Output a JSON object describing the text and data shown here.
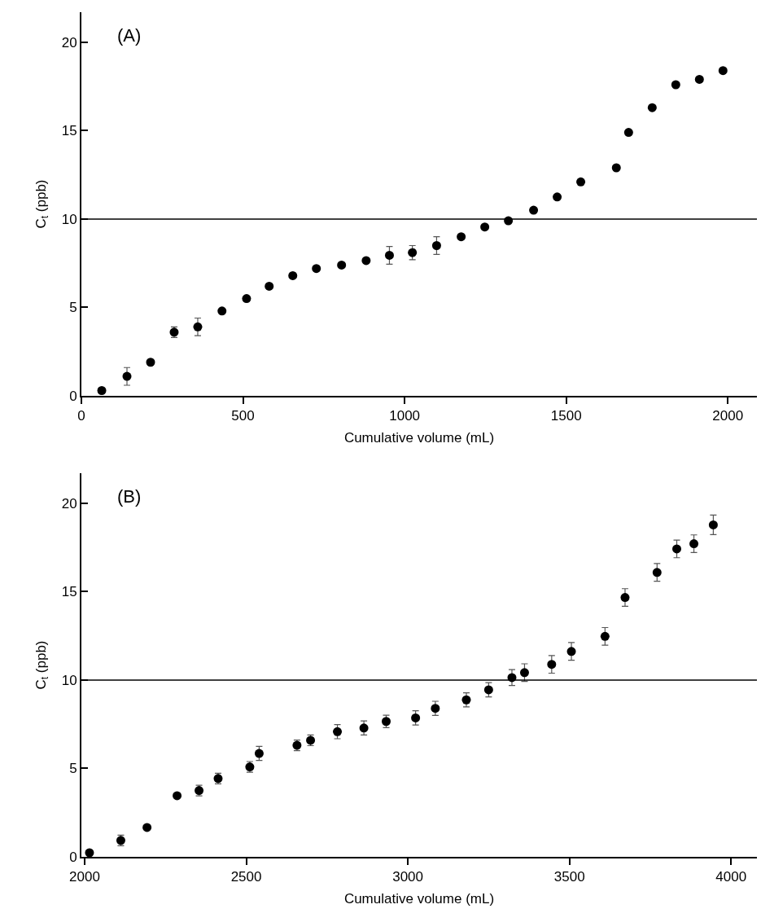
{
  "chart_data": [
    {
      "type": "scatter",
      "xlabel": "Cumulative volume (mL)",
      "ylabel": "C$_{t}$ (ppb)",
      "annotations": [
        "(A)"
      ],
      "marker": "circle",
      "grid": false,
      "xlim": [
        0,
        2090
      ],
      "xticks": [
        0,
        500,
        1000,
        1500,
        2000
      ],
      "ylim": [
        0,
        21.7
      ],
      "yticks": [
        0,
        5,
        10,
        15,
        20
      ],
      "ref_lines": [
        {
          "axis": "y",
          "value": 10,
          "color": "#000000"
        }
      ],
      "series": [
        {
          "color": "#000000",
          "x": [
            63,
            141,
            214,
            287,
            360,
            435,
            511,
            581,
            654,
            727,
            805,
            881,
            953,
            1024,
            1099,
            1175,
            1248,
            1321,
            1399,
            1472,
            1545,
            1655,
            1693,
            1766,
            1839,
            1912,
            1985
          ],
          "values": [
            0.3,
            1.1,
            1.9,
            3.6,
            3.9,
            4.8,
            5.5,
            6.2,
            6.8,
            7.2,
            7.4,
            7.65,
            7.95,
            8.1,
            8.5,
            9.0,
            9.55,
            9.9,
            10.5,
            11.25,
            12.1,
            12.9,
            14.9,
            16.3,
            17.6,
            17.9,
            18.4
          ],
          "errors": [
            null,
            0.5,
            null,
            0.3,
            0.5,
            null,
            null,
            null,
            null,
            null,
            null,
            null,
            0.5,
            0.4,
            0.5,
            null,
            null,
            null,
            null,
            null,
            null,
            null,
            null,
            null,
            null,
            null,
            null
          ]
        }
      ]
    },
    {
      "type": "scatter",
      "xlabel": "Cumulative volume (mL)",
      "ylabel": "C$_{t}$ (ppb)",
      "annotations": [
        "(B)"
      ],
      "marker": "circle",
      "grid": false,
      "xlim": [
        1990,
        4080
      ],
      "xticks": [
        2000,
        2500,
        3000,
        3500,
        4000
      ],
      "ylim": [
        0,
        21.7
      ],
      "yticks": [
        0,
        5,
        10,
        15,
        20
      ],
      "ref_lines": [
        {
          "axis": "y",
          "value": 10,
          "color": "#000000"
        }
      ],
      "series": [
        {
          "color": "#000000",
          "x": [
            2015,
            2112,
            2193,
            2286,
            2354,
            2413,
            2511,
            2540,
            2657,
            2699,
            2782,
            2864,
            2933,
            3024,
            3085,
            3181,
            3250,
            3322,
            3361,
            3445,
            3506,
            3610,
            3672,
            3771,
            3832,
            3885,
            3945
          ],
          "values": [
            0.23,
            0.93,
            1.66,
            3.46,
            3.75,
            4.43,
            5.09,
            5.85,
            6.31,
            6.59,
            7.08,
            7.29,
            7.66,
            7.86,
            8.4,
            8.88,
            9.45,
            10.14,
            10.42,
            10.89,
            11.62,
            12.47,
            14.67,
            16.09,
            17.42,
            17.71,
            18.78
          ],
          "errors": [
            null,
            0.3,
            null,
            null,
            0.3,
            0.3,
            0.3,
            0.4,
            0.3,
            0.3,
            0.4,
            0.4,
            0.35,
            0.4,
            0.4,
            0.4,
            0.4,
            0.45,
            0.5,
            0.5,
            0.5,
            0.5,
            0.5,
            0.5,
            0.5,
            0.5,
            0.55
          ]
        }
      ]
    }
  ]
}
